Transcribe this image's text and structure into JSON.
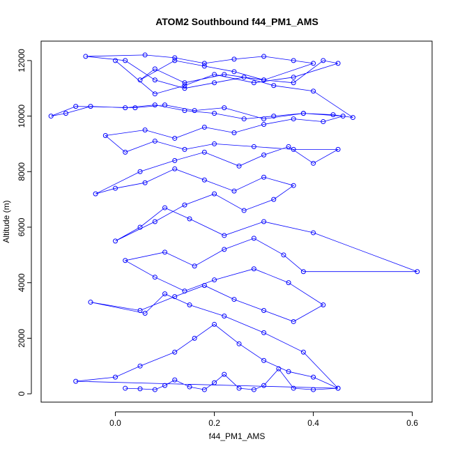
{
  "chart_data": {
    "type": "scatter",
    "title": "ATOM2 Southbound f44_PM1_AMS",
    "xlabel": "f44_PM1_AMS",
    "ylabel": "Altitude (m)",
    "xlim": [
      -0.15,
      0.64
    ],
    "ylim": [
      -300,
      12700
    ],
    "x_ticks": [
      0.0,
      0.2,
      0.4,
      0.6
    ],
    "x_tick_labels": [
      "0.0",
      "0.2",
      "0.4",
      "0.6"
    ],
    "y_ticks": [
      0,
      2000,
      4000,
      6000,
      8000,
      10000,
      12000
    ],
    "y_tick_labels": [
      "0",
      "2000",
      "4000",
      "6000",
      "8000",
      "10000",
      "12000"
    ],
    "grid": false,
    "legend": "none",
    "series": [
      {
        "marker": "open-circle",
        "line": true,
        "color": "#0000ff",
        "x": [
          0.02,
          0.05,
          0.08,
          0.1,
          0.12,
          0.15,
          0.18,
          0.2,
          0.22,
          0.25,
          0.28,
          0.3,
          0.33,
          0.36,
          0.4,
          0.45,
          -0.08,
          0.0,
          0.05,
          0.12,
          0.16,
          0.2,
          0.25,
          0.3,
          0.35,
          0.4,
          0.45,
          0.38,
          0.3,
          0.22,
          0.15,
          0.1,
          0.06,
          -0.05,
          0.05,
          0.12,
          0.18,
          0.24,
          0.3,
          0.36,
          0.42,
          0.35,
          0.28,
          0.2,
          0.14,
          0.08,
          0.02,
          0.1,
          0.16,
          0.22,
          0.28,
          0.34,
          0.38,
          0.61,
          0.4,
          0.3,
          0.22,
          0.15,
          0.1,
          0.05,
          0.0,
          0.08,
          0.14,
          0.2,
          0.26,
          0.32,
          0.36,
          0.3,
          0.24,
          0.18,
          0.12,
          0.06,
          0.0,
          -0.04,
          0.05,
          0.12,
          0.18,
          0.25,
          0.3,
          0.35,
          0.4,
          0.45,
          0.36,
          0.28,
          0.2,
          0.14,
          0.08,
          0.02,
          -0.02,
          0.06,
          0.12,
          0.18,
          0.24,
          0.3,
          0.36,
          0.42,
          0.46,
          0.38,
          0.3,
          0.22,
          0.16,
          0.1,
          0.04,
          -0.08,
          -0.13,
          -0.1,
          -0.05,
          0.02,
          0.08,
          0.14,
          0.2,
          0.26,
          0.32,
          0.38,
          0.44,
          0.48,
          0.4,
          0.32,
          0.26,
          0.2,
          0.14,
          0.08,
          0.02,
          -0.06,
          0.06,
          0.12,
          0.18,
          0.24,
          0.3,
          0.36,
          0.4,
          0.3,
          0.22,
          0.14,
          0.08,
          0.05,
          0.12,
          0.18,
          0.24,
          0.3,
          0.36,
          0.42,
          0.45,
          0.36,
          0.28,
          0.2,
          0.14,
          0.08,
          0.0
        ],
        "y": [
          200,
          180,
          150,
          300,
          500,
          250,
          150,
          400,
          700,
          200,
          150,
          300,
          900,
          200,
          150,
          200,
          450,
          600,
          1000,
          1500,
          2000,
          2500,
          1800,
          1200,
          800,
          600,
          200,
          1500,
          2200,
          2800,
          3200,
          3600,
          2900,
          3300,
          3000,
          3500,
          3900,
          3400,
          3000,
          2600,
          3200,
          4000,
          4500,
          4100,
          3700,
          4200,
          4800,
          5100,
          4600,
          5200,
          5600,
          5000,
          4400,
          4400,
          5800,
          6200,
          5700,
          6300,
          6700,
          6000,
          5500,
          6200,
          6800,
          7200,
          6600,
          7000,
          7500,
          7800,
          7300,
          7700,
          8100,
          7600,
          7400,
          7200,
          8000,
          8400,
          8700,
          8200,
          8600,
          8900,
          8300,
          8800,
          8800,
          8900,
          9000,
          8800,
          9100,
          8700,
          9300,
          9500,
          9200,
          9600,
          9400,
          9700,
          9900,
          9800,
          10000,
          10100,
          9900,
          10300,
          10200,
          10400,
          10300,
          10350,
          10000,
          10100,
          10350,
          10300,
          10400,
          10200,
          10100,
          9900,
          10000,
          10100,
          10050,
          9950,
          10900,
          11100,
          11400,
          11200,
          11000,
          11300,
          12000,
          12150,
          12200,
          12100,
          11900,
          12050,
          12150,
          12000,
          11900,
          11300,
          11500,
          11200,
          11700,
          11300,
          12000,
          11800,
          11600,
          11300,
          11200,
          12000,
          11900,
          11400,
          11200,
          11500,
          11100,
          10800,
          12000
        ]
      }
    ]
  }
}
